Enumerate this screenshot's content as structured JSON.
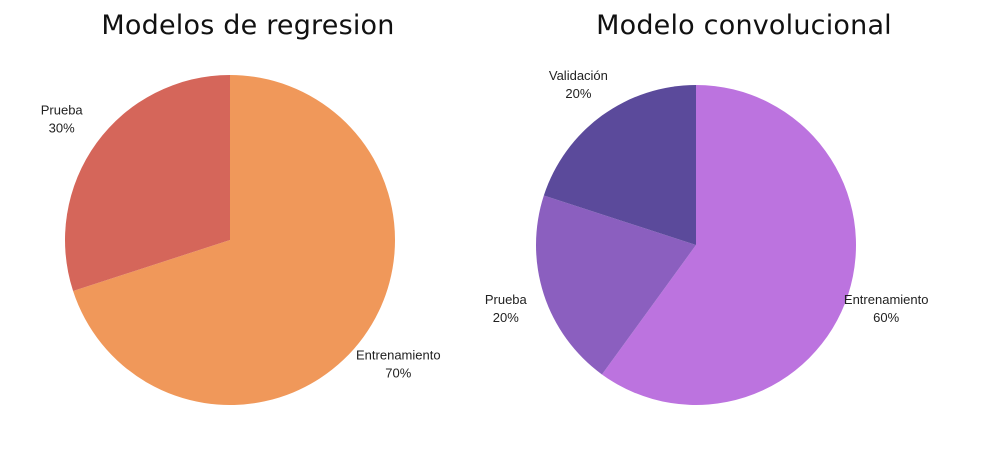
{
  "chart_data": [
    {
      "type": "pie",
      "title": "Modelos de regresion",
      "categories": [
        "Entrenamiento",
        "Prueba"
      ],
      "values": [
        70,
        30
      ],
      "value_labels": [
        "70%",
        "30%"
      ],
      "colors": [
        "#F0985A",
        "#D5665A"
      ],
      "start": "12 o'clock, clockwise",
      "labels": "outside, category and percentage"
    },
    {
      "type": "pie",
      "title": "Modelo convolucional",
      "categories": [
        "Entrenamiento",
        "Prueba",
        "Validación"
      ],
      "values": [
        60,
        20,
        20
      ],
      "value_labels": [
        "60%",
        "20%",
        "20%"
      ],
      "colors": [
        "#BC73DF",
        "#8B5FBF",
        "#5B4A9B"
      ],
      "start": "12 o'clock, clockwise",
      "labels": "outside, category and percentage"
    }
  ]
}
